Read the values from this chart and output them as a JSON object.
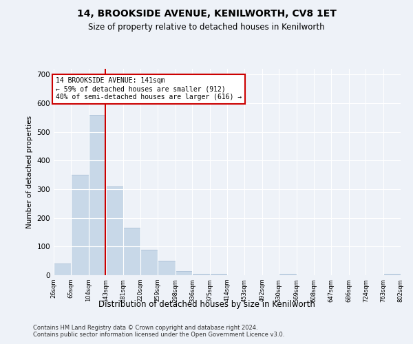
{
  "title": "14, BROOKSIDE AVENUE, KENILWORTH, CV8 1ET",
  "subtitle": "Size of property relative to detached houses in Kenilworth",
  "xlabel": "Distribution of detached houses by size in Kenilworth",
  "ylabel": "Number of detached properties",
  "footer_line1": "Contains HM Land Registry data © Crown copyright and database right 2024.",
  "footer_line2": "Contains public sector information licensed under the Open Government Licence v3.0.",
  "bar_color": "#c8d8e8",
  "bar_edge_color": "#a0b8d0",
  "background_color": "#eef2f8",
  "grid_color": "#ffffff",
  "vline_color": "#cc0000",
  "vline_x": 141,
  "annotation_text": "14 BROOKSIDE AVENUE: 141sqm\n← 59% of detached houses are smaller (912)\n40% of semi-detached houses are larger (616) →",
  "annotation_box_color": "#ffffff",
  "annotation_box_edge": "#cc0000",
  "bin_edges": [
    26,
    65,
    104,
    143,
    181,
    220,
    259,
    298,
    336,
    375,
    414,
    453,
    492,
    530,
    569,
    608,
    647,
    686,
    724,
    763,
    802
  ],
  "bar_heights": [
    40,
    350,
    560,
    310,
    165,
    90,
    50,
    15,
    5,
    5,
    0,
    0,
    0,
    5,
    0,
    0,
    0,
    0,
    0,
    5
  ],
  "ylim": [
    0,
    720
  ],
  "yticks": [
    0,
    100,
    200,
    300,
    400,
    500,
    600,
    700
  ]
}
